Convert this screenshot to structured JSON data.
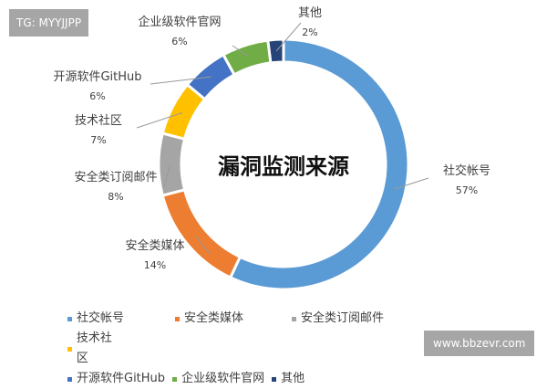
{
  "watermarks": {
    "top_left": "TG: MYYJJPP",
    "bottom_right": "www.bbzevr.com"
  },
  "chart_data": {
    "type": "pie",
    "donut": true,
    "title": "漏洞监测来源",
    "categories": [
      "社交帐号",
      "安全类媒体",
      "安全类订阅邮件",
      "技术社区",
      "开源软件GitHub",
      "企业级软件官网",
      "其他"
    ],
    "values": [
      57,
      14,
      8,
      7,
      6,
      6,
      2
    ],
    "labels": [
      "57%",
      "14%",
      "8%",
      "7%",
      "6%",
      "6%",
      "2%"
    ],
    "colors": [
      "#5B9BD5",
      "#ED7D31",
      "#A5A5A5",
      "#FFC000",
      "#4472C4",
      "#70AD47",
      "#264478"
    ],
    "legend_placement": "bottom"
  }
}
